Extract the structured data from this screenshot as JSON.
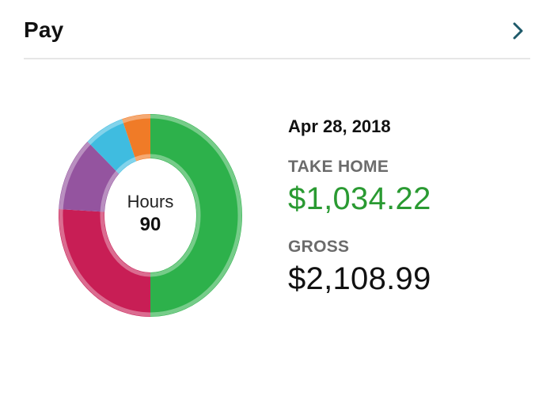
{
  "header": {
    "title": "Pay",
    "chevron_icon": "chevron-right-icon",
    "accent_color": "#1e5a6a"
  },
  "donut": {
    "center_label": "Hours",
    "center_value": "90",
    "segments": [
      {
        "share": 0.5,
        "color": "#2db14b"
      },
      {
        "share": 0.26,
        "color": "#c81e55"
      },
      {
        "share": 0.12,
        "color": "#94549f"
      },
      {
        "share": 0.07,
        "color": "#3fbce0"
      },
      {
        "share": 0.05,
        "color": "#f07b27"
      }
    ]
  },
  "summary": {
    "date": "Apr 28, 2018",
    "take_home_label": "TAKE HOME",
    "take_home_amount": "$1,034.22",
    "gross_label": "GROSS",
    "gross_amount": "$2,108.99",
    "take_home_color": "#2a9a32"
  }
}
